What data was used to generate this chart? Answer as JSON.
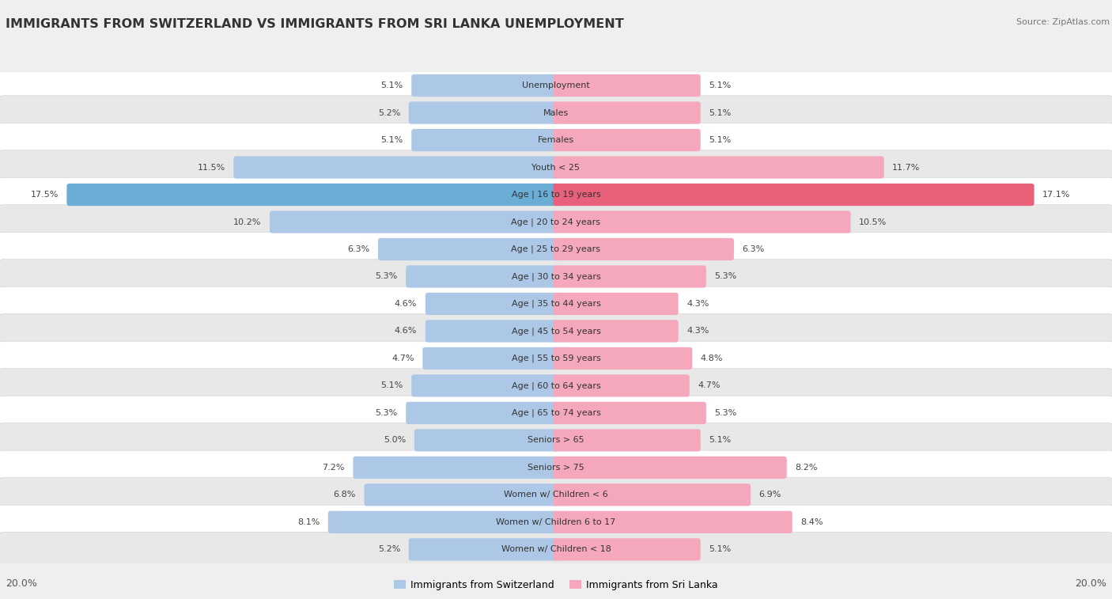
{
  "title": "IMMIGRANTS FROM SWITZERLAND VS IMMIGRANTS FROM SRI LANKA UNEMPLOYMENT",
  "source": "Source: ZipAtlas.com",
  "categories": [
    "Unemployment",
    "Males",
    "Females",
    "Youth < 25",
    "Age | 16 to 19 years",
    "Age | 20 to 24 years",
    "Age | 25 to 29 years",
    "Age | 30 to 34 years",
    "Age | 35 to 44 years",
    "Age | 45 to 54 years",
    "Age | 55 to 59 years",
    "Age | 60 to 64 years",
    "Age | 65 to 74 years",
    "Seniors > 65",
    "Seniors > 75",
    "Women w/ Children < 6",
    "Women w/ Children 6 to 17",
    "Women w/ Children < 18"
  ],
  "switzerland_values": [
    5.1,
    5.2,
    5.1,
    11.5,
    17.5,
    10.2,
    6.3,
    5.3,
    4.6,
    4.6,
    4.7,
    5.1,
    5.3,
    5.0,
    7.2,
    6.8,
    8.1,
    5.2
  ],
  "srilanka_values": [
    5.1,
    5.1,
    5.1,
    11.7,
    17.1,
    10.5,
    6.3,
    5.3,
    4.3,
    4.3,
    4.8,
    4.7,
    5.3,
    5.1,
    8.2,
    6.9,
    8.4,
    5.1
  ],
  "switzerland_color": "#adc8e6",
  "srilanka_color": "#f5a8bc",
  "highlight_switzerland_color": "#6aaed6",
  "highlight_srilanka_color": "#e8607a",
  "background_color": "#efefef",
  "bar_bg_color": "#ffffff",
  "row_alt_color": "#e8e8e8",
  "max_value": 20.0,
  "legend_switzerland": "Immigrants from Switzerland",
  "legend_srilanka": "Immigrants from Sri Lanka",
  "label_fontsize": 8.0,
  "value_fontsize": 8.0,
  "title_fontsize": 11.5
}
